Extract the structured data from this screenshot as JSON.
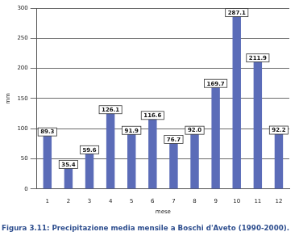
{
  "chart_data": {
    "type": "bar",
    "title": "Figura 3.11: Precipitazione media mensile a Boschi d'Aveto (1990-2000).",
    "x_label": "mese",
    "y_label": "mm",
    "categories": [
      "1",
      "2",
      "3",
      "4",
      "5",
      "6",
      "7",
      "8",
      "9",
      "10",
      "11",
      "12"
    ],
    "values": [
      89.3,
      35.4,
      59.6,
      126.1,
      91.9,
      116.6,
      76.7,
      92.0,
      169.7,
      287.1,
      211.9,
      92.2
    ],
    "value_labels": [
      "89.3",
      "35.4",
      "59.6",
      "126.1",
      "91.9",
      "116.6",
      "76.7",
      "92.0",
      "169.7",
      "287.1",
      "211.9",
      "92.2"
    ],
    "color": "#5b6cb8",
    "ylim": [
      0,
      300
    ],
    "yticks": [
      0,
      50,
      100,
      150,
      200,
      250,
      300
    ],
    "grid": true,
    "data_labels": true
  }
}
